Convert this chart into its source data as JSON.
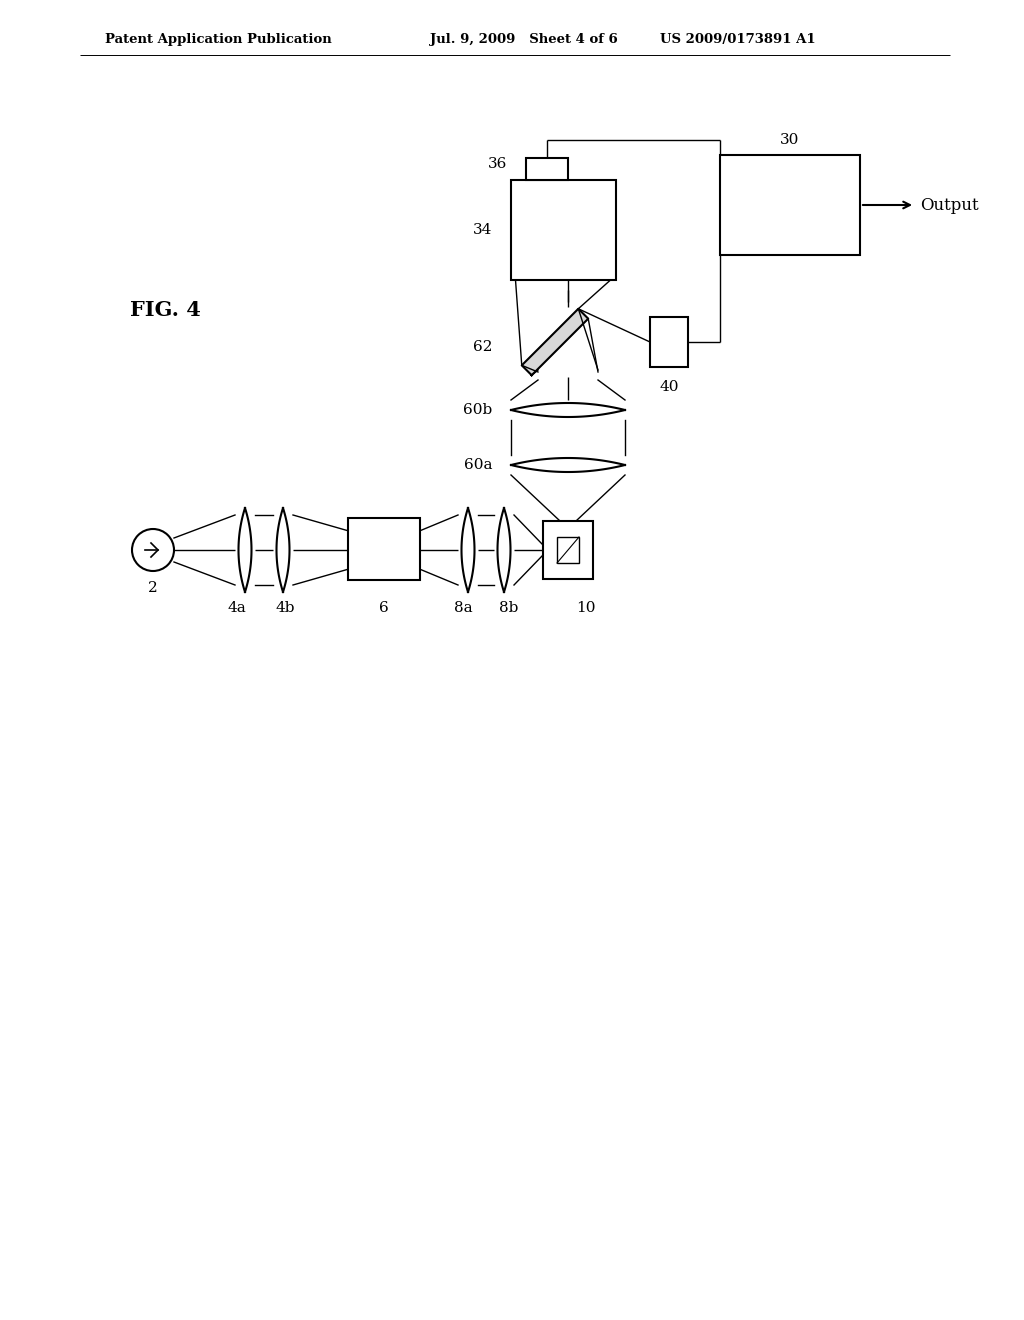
{
  "bg_color": "#ffffff",
  "line_color": "#000000",
  "header_left": "Patent Application Publication",
  "header_mid": "Jul. 9, 2009   Sheet 4 of 6",
  "header_right": "US 2009/0173891 A1",
  "fig_label": "FIG. 4",
  "lw_main": 1.5,
  "lw_beam": 1.0,
  "lw_thin": 0.8,
  "label_fs": 11,
  "header_fs": 9.5,
  "fig_fs": 15
}
